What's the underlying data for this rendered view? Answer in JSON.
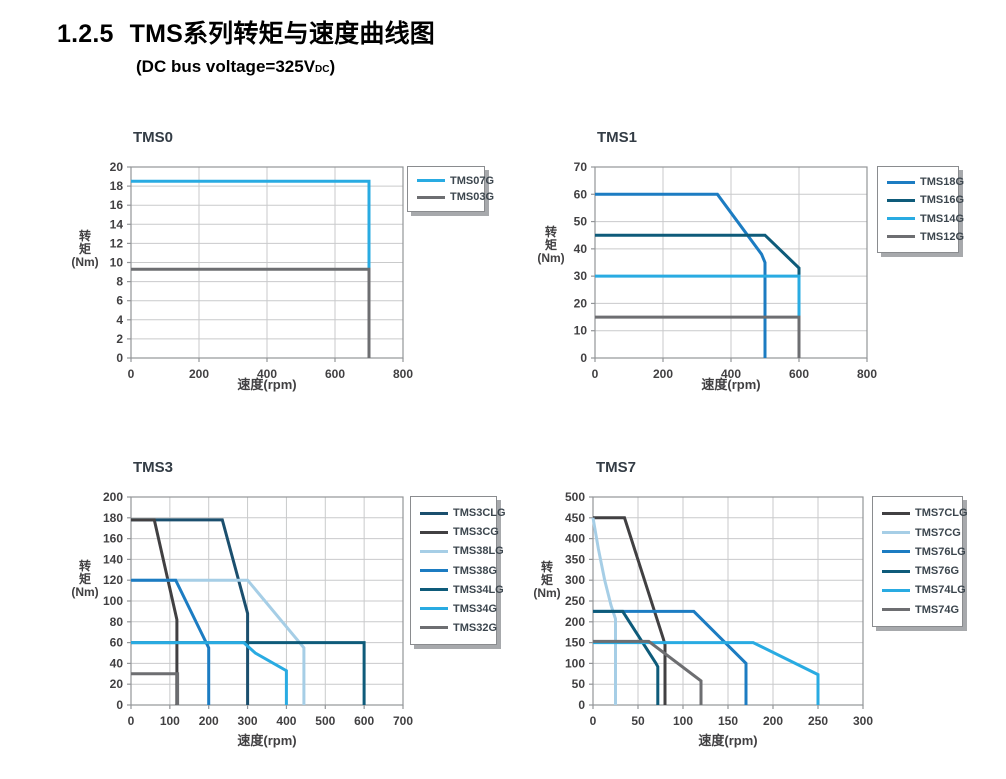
{
  "page": {
    "heading_number": "1.2.5",
    "heading_title": "TMS系列转矩与速度曲线图",
    "subtitle_prefix": "(DC bus voltage=325V",
    "subtitle_sub": "DC",
    "subtitle_suffix": ")"
  },
  "palette": {
    "cyan": "#29ABE2",
    "blue": "#1C7CC2",
    "teal": "#0E5B7A",
    "navy": "#1B4F6E",
    "charcoal": "#414042",
    "gray": "#6D6E71",
    "pale_blue": "#A6CEE6",
    "grid_line": "#C9CACB",
    "axis_line": "#939598",
    "tick_text": "#414042",
    "legend_text": "#3C464E"
  },
  "chart_data": [
    {
      "type": "line",
      "title": "TMS0",
      "xlabel": "速度(rpm)",
      "ylabel": "转矩(Nm)",
      "ylabel_lines": [
        "转",
        "矩",
        "(Nm)"
      ],
      "xlim": [
        0,
        800
      ],
      "xtick_step": 200,
      "ylim": [
        0,
        20
      ],
      "ytick_step": 2,
      "grid": true,
      "legend_position": "right",
      "series": [
        {
          "name": "TMS07G",
          "color": "cyan",
          "points": [
            [
              0,
              18.5
            ],
            [
              700,
              18.5
            ],
            [
              700,
              0
            ]
          ]
        },
        {
          "name": "TMS03G",
          "color": "gray",
          "points": [
            [
              0,
              9.3
            ],
            [
              700,
              9.3
            ],
            [
              700,
              0
            ]
          ]
        }
      ]
    },
    {
      "type": "line",
      "title": "TMS1",
      "xlabel": "速度(rpm)",
      "ylabel": "转矩(Nm)",
      "ylabel_lines": [
        "转",
        "矩",
        "(Nm)"
      ],
      "xlim": [
        0,
        800
      ],
      "xtick_step": 200,
      "ylim": [
        0,
        70
      ],
      "ytick_step": 10,
      "grid": true,
      "legend_position": "right",
      "series": [
        {
          "name": "TMS18G",
          "color": "blue",
          "points": [
            [
              0,
              60
            ],
            [
              360,
              60
            ],
            [
              490,
              38
            ],
            [
              500,
              35
            ],
            [
              500,
              0
            ]
          ]
        },
        {
          "name": "TMS16G",
          "color": "teal",
          "points": [
            [
              0,
              45
            ],
            [
              500,
              45
            ],
            [
              600,
              33
            ],
            [
              600,
              0
            ]
          ]
        },
        {
          "name": "TMS14G",
          "color": "cyan",
          "points": [
            [
              0,
              30
            ],
            [
              600,
              30
            ],
            [
              600,
              0
            ]
          ]
        },
        {
          "name": "TMS12G",
          "color": "gray",
          "points": [
            [
              0,
              15
            ],
            [
              600,
              15
            ],
            [
              600,
              0
            ]
          ]
        }
      ]
    },
    {
      "type": "line",
      "title": "TMS3",
      "xlabel": "速度(rpm)",
      "ylabel": "转矩(Nm)",
      "ylabel_lines": [
        "转",
        "矩",
        "(Nm)"
      ],
      "xlim": [
        0,
        700
      ],
      "xtick_step": 100,
      "ylim": [
        0,
        200
      ],
      "ytick_step": 20,
      "grid": true,
      "legend_position": "right",
      "series": [
        {
          "name": "TMS3CLG",
          "color": "navy",
          "points": [
            [
              0,
              178
            ],
            [
              235,
              178
            ],
            [
              300,
              88
            ],
            [
              300,
              0
            ]
          ]
        },
        {
          "name": "TMS3CG",
          "color": "charcoal",
          "points": [
            [
              0,
              178
            ],
            [
              60,
              178
            ],
            [
              118,
              82
            ],
            [
              118,
              0
            ]
          ]
        },
        {
          "name": "TMS38LG",
          "color": "pale_blue",
          "points": [
            [
              0,
              120
            ],
            [
              300,
              120
            ],
            [
              445,
              55
            ],
            [
              445,
              0
            ]
          ]
        },
        {
          "name": "TMS38G",
          "color": "blue",
          "points": [
            [
              0,
              120
            ],
            [
              115,
              120
            ],
            [
              200,
              55
            ],
            [
              200,
              0
            ]
          ]
        },
        {
          "name": "TMS34LG",
          "color": "teal",
          "points": [
            [
              0,
              60
            ],
            [
              600,
              60
            ],
            [
              600,
              0
            ]
          ]
        },
        {
          "name": "TMS34G",
          "color": "cyan",
          "points": [
            [
              0,
              60
            ],
            [
              290,
              60
            ],
            [
              320,
              50
            ],
            [
              400,
              33
            ],
            [
              400,
              0
            ]
          ]
        },
        {
          "name": "TMS32G",
          "color": "gray",
          "points": [
            [
              0,
              30
            ],
            [
              120,
              30
            ],
            [
              120,
              0
            ]
          ]
        }
      ]
    },
    {
      "type": "line",
      "title": "TMS7",
      "xlabel": "速度(rpm)",
      "ylabel": "转矩(Nm)",
      "ylabel_lines": [
        "转",
        "矩",
        "(Nm)"
      ],
      "xlim": [
        0,
        300
      ],
      "xtick_step": 50,
      "ylim": [
        0,
        500
      ],
      "ytick_step": 50,
      "grid": true,
      "legend_position": "right",
      "series": [
        {
          "name": "TMS7CLG",
          "color": "charcoal",
          "points": [
            [
              0,
              450
            ],
            [
              35,
              450
            ],
            [
              78,
              160
            ],
            [
              80,
              145
            ],
            [
              80,
              0
            ]
          ]
        },
        {
          "name": "TMS7CG",
          "color": "pale_blue",
          "points": [
            [
              0,
              450
            ],
            [
              6,
              375
            ],
            [
              13,
              300
            ],
            [
              20,
              240
            ],
            [
              25,
              207
            ],
            [
              25,
              0
            ]
          ]
        },
        {
          "name": "TMS76LG",
          "color": "blue",
          "points": [
            [
              0,
              225
            ],
            [
              112,
              225
            ],
            [
              170,
              100
            ],
            [
              170,
              0
            ]
          ]
        },
        {
          "name": "TMS76G",
          "color": "teal",
          "points": [
            [
              0,
              225
            ],
            [
              33,
              225
            ],
            [
              70,
              100
            ],
            [
              72,
              92
            ],
            [
              72,
              0
            ]
          ]
        },
        {
          "name": "TMS74LG",
          "color": "cyan",
          "points": [
            [
              0,
              150
            ],
            [
              178,
              150
            ],
            [
              250,
              73
            ],
            [
              250,
              0
            ]
          ]
        },
        {
          "name": "TMS74G",
          "color": "gray",
          "points": [
            [
              0,
              153
            ],
            [
              62,
              153
            ],
            [
              120,
              58
            ],
            [
              120,
              0
            ]
          ]
        }
      ]
    }
  ]
}
